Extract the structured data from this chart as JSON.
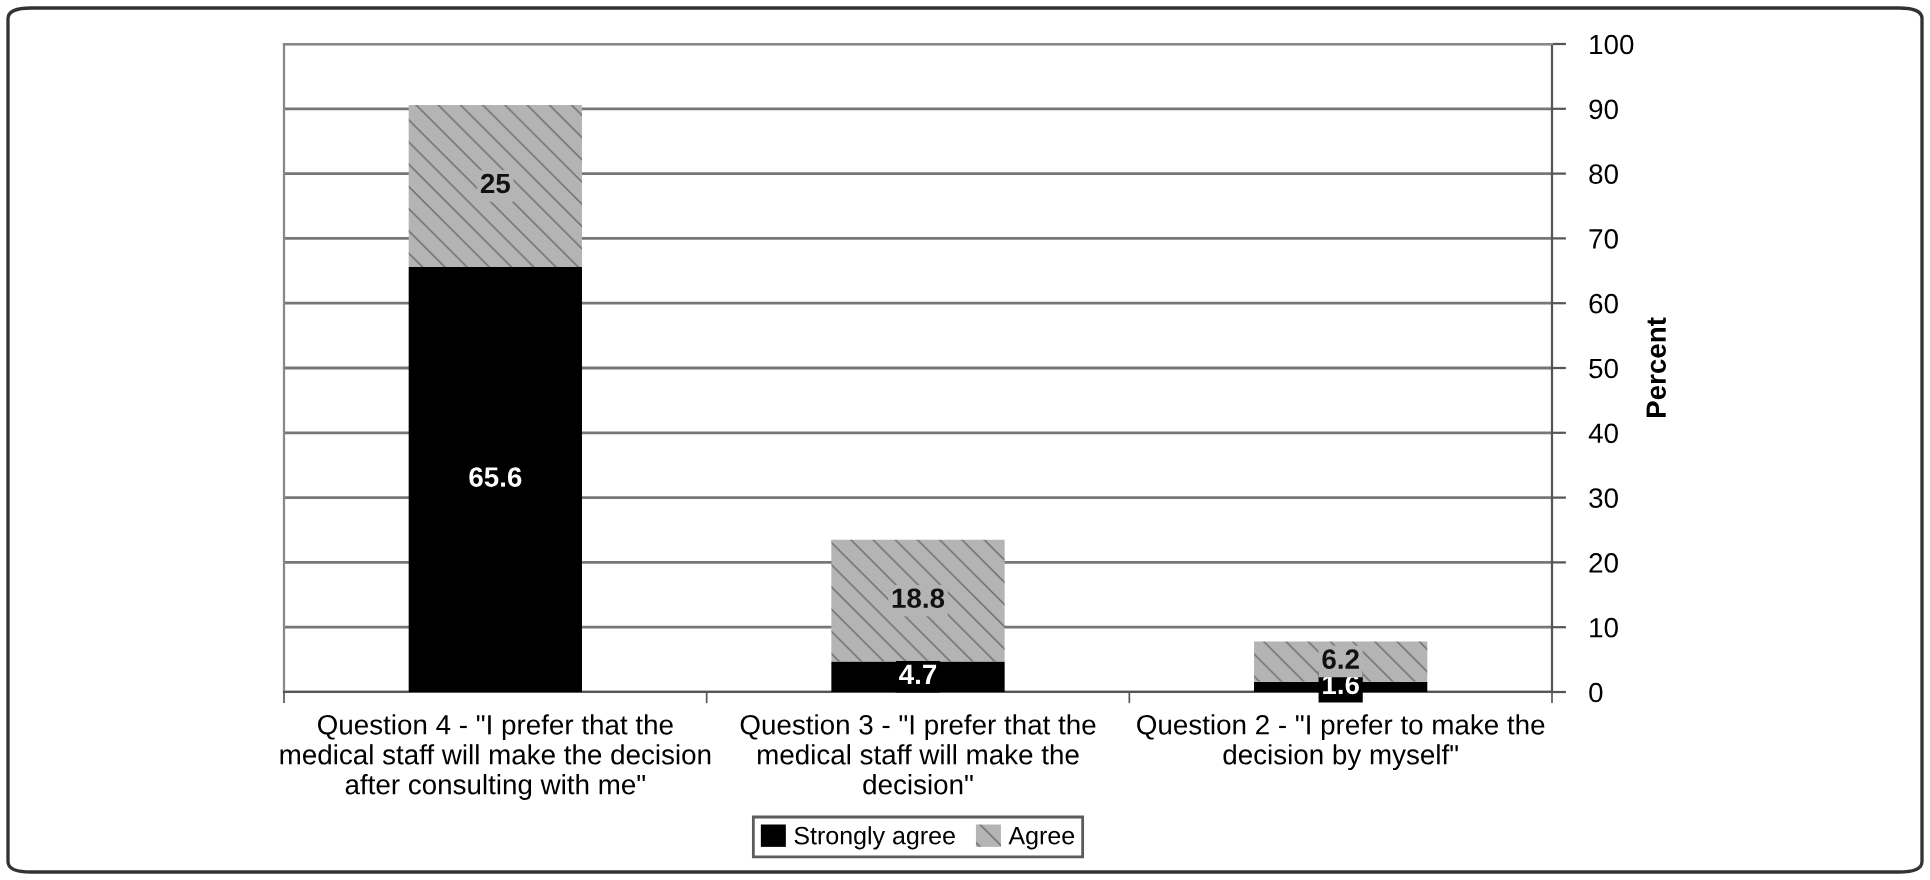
{
  "chart_data": {
    "type": "bar",
    "stacked": true,
    "categories": [
      "Question 4 - \"I prefer that the\nmedical staff will make the decision\nafter consulting with me\"",
      "Question 3 - \"I prefer that the\nmedical staff will make the\ndecision\"",
      "Question 2 - \"I prefer to make the\ndecision by myself\""
    ],
    "series": [
      {
        "name": "Strongly agree",
        "color": "#000000",
        "values": [
          65.6,
          4.7,
          1.6
        ]
      },
      {
        "name": "Agree",
        "color": "#b4b4b4",
        "values": [
          25,
          18.8,
          6.2
        ]
      }
    ],
    "ylabel": "Percent",
    "ylim": [
      0,
      100
    ],
    "yticks": [
      0,
      10,
      20,
      30,
      40,
      50,
      60,
      70,
      80,
      90,
      100
    ],
    "grid": "y",
    "legend": "bottom",
    "data_labels": true
  }
}
